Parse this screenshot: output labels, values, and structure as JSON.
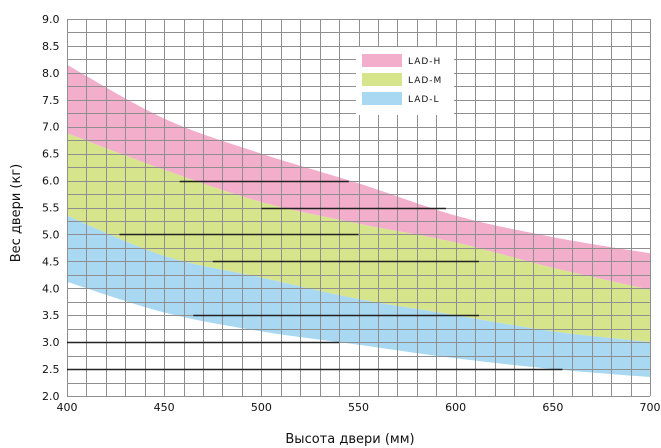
{
  "chart_data": {
    "type": "area",
    "title": "",
    "xlabel": "Высота двери (мм)",
    "ylabel": "Вес двери (кг)",
    "xlim": [
      400,
      700
    ],
    "ylim": [
      2.0,
      9.0
    ],
    "x_ticks": [
      400,
      450,
      500,
      550,
      600,
      650,
      700
    ],
    "y_ticks": [
      "2.0",
      "2.5",
      "3.0",
      "3.5",
      "4.0",
      "4.5",
      "5.0",
      "5.5",
      "6.0",
      "6.5",
      "7.0",
      "7.5",
      "8.0",
      "8.5",
      "9.0"
    ],
    "grid": true,
    "legend_position": "top-center",
    "x": [
      400,
      450,
      500,
      550,
      600,
      650,
      700
    ],
    "series": [
      {
        "name": "LAD-H",
        "color": "#f2aecb",
        "lower": [
          6.88,
          6.2,
          5.6,
          5.2,
          4.85,
          4.38,
          3.97
        ],
        "upper": [
          8.15,
          7.15,
          6.5,
          5.95,
          5.35,
          4.95,
          4.65
        ]
      },
      {
        "name": "LAD-M",
        "color": "#d6e48c",
        "lower": [
          5.35,
          4.6,
          4.2,
          3.8,
          3.5,
          3.2,
          3.0
        ],
        "upper": [
          6.88,
          6.2,
          5.6,
          5.2,
          4.85,
          4.38,
          3.97
        ]
      },
      {
        "name": "LAD-L",
        "color": "#a9d8f2",
        "lower": [
          4.12,
          3.55,
          3.2,
          2.95,
          2.7,
          2.5,
          2.35
        ],
        "upper": [
          5.35,
          4.6,
          4.2,
          3.8,
          3.5,
          3.2,
          3.0
        ]
      }
    ],
    "reference_lines": [
      {
        "y": 6.0,
        "x_start": 458,
        "x_end": 545
      },
      {
        "y": 5.5,
        "x_start": 500,
        "x_end": 595
      },
      {
        "y": 5.0,
        "x_start": 427,
        "x_end": 550
      },
      {
        "y": 4.5,
        "x_start": 475,
        "x_end": 612
      },
      {
        "y": 3.5,
        "x_start": 465,
        "x_end": 612
      },
      {
        "y": 3.0,
        "x_start": 400,
        "x_end": 540
      },
      {
        "y": 2.5,
        "x_start": 400,
        "x_end": 655
      }
    ]
  }
}
